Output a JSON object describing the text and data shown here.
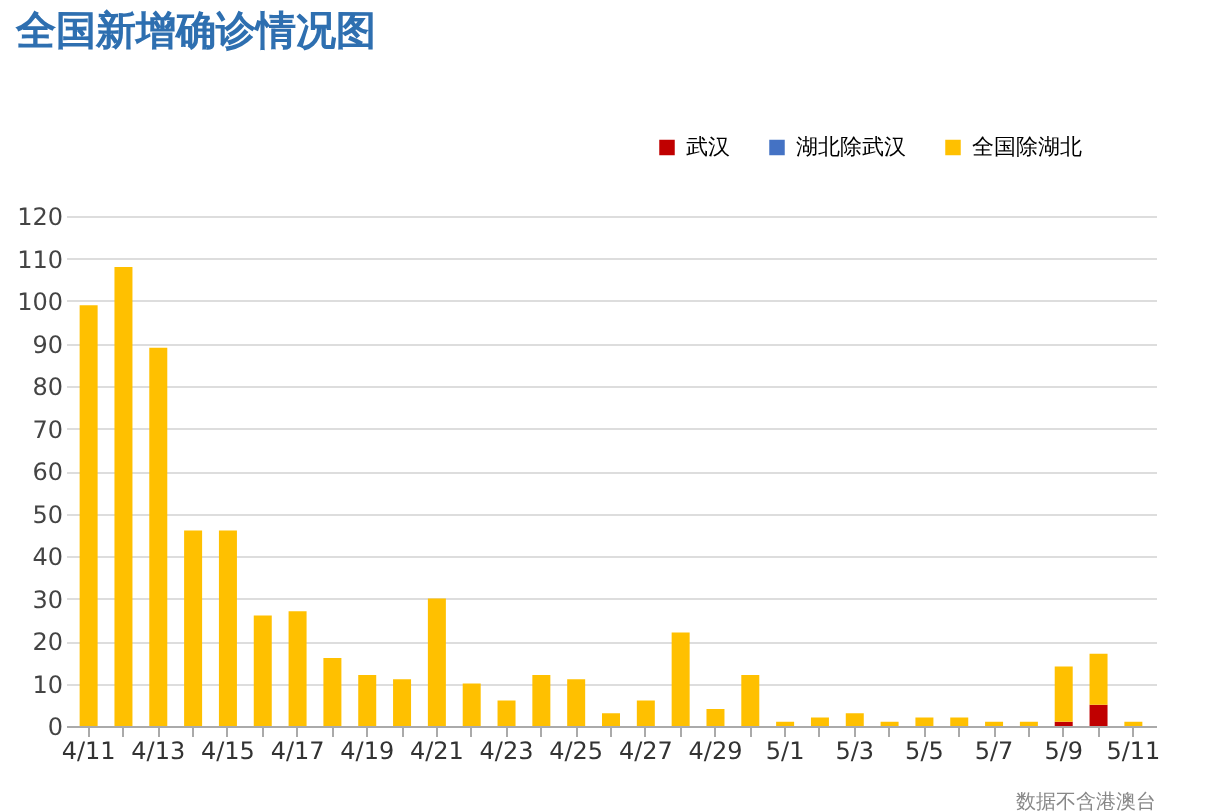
{
  "chart_data": {
    "type": "bar",
    "title": "全国新增确诊情况图",
    "stacked": true,
    "categories": [
      "4/11",
      null,
      "4/13",
      null,
      "4/15",
      null,
      "4/17",
      null,
      "4/19",
      null,
      "4/21",
      null,
      "4/23",
      null,
      "4/25",
      null,
      "4/27",
      null,
      "4/29",
      null,
      "5/1",
      null,
      "5/3",
      null,
      "5/5",
      null,
      "5/7",
      null,
      "5/9",
      null,
      "5/11"
    ],
    "series": [
      {
        "name": "武汉",
        "color": "#c00000",
        "values": [
          0,
          0,
          0,
          0,
          0,
          0,
          0,
          0,
          0,
          0,
          0,
          0,
          0,
          0,
          0,
          0,
          0,
          0,
          0,
          0,
          0,
          0,
          0,
          0,
          0,
          0,
          0,
          0,
          1,
          5,
          0
        ]
      },
      {
        "name": "湖北除武汉",
        "color": "#4472c4",
        "values": [
          0,
          0,
          0,
          0,
          0,
          0,
          0,
          0,
          0,
          0,
          0,
          0,
          0,
          0,
          0,
          0,
          0,
          0,
          0,
          0,
          0,
          0,
          0,
          0,
          0,
          0,
          0,
          0,
          0,
          0,
          0
        ]
      },
      {
        "name": "全国除湖北",
        "color": "#ffc000",
        "values": [
          99,
          108,
          89,
          46,
          46,
          26,
          27,
          16,
          12,
          11,
          30,
          10,
          6,
          12,
          11,
          3,
          6,
          22,
          4,
          12,
          1,
          2,
          3,
          1,
          2,
          2,
          1,
          1,
          13,
          12,
          1
        ]
      }
    ],
    "ylim": [
      0,
      120
    ],
    "yticks": [
      0,
      10,
      20,
      30,
      40,
      50,
      60,
      70,
      80,
      90,
      100,
      110,
      120
    ],
    "grid": "y",
    "legend": "top right",
    "annotations": [
      "数据不含港澳台"
    ]
  }
}
